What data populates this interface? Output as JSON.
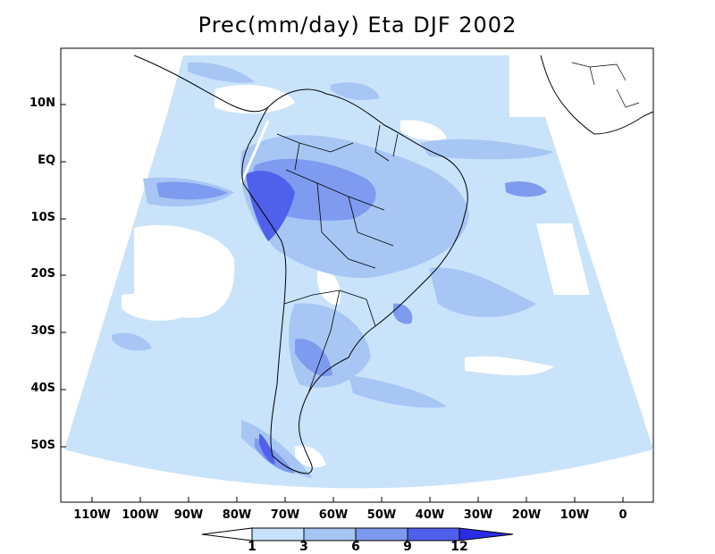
{
  "title": "Prec(mm/day) Eta DJF 2002",
  "lat_labels": [
    "10N",
    "EQ",
    "10S",
    "20S",
    "30S",
    "40S",
    "50S"
  ],
  "lon_labels": [
    "110W",
    "100W",
    "90W",
    "80W",
    "70W",
    "60W",
    "50W",
    "40W",
    "30W",
    "20W",
    "10W",
    "0"
  ],
  "colorbar": {
    "levels": [
      "1",
      "3",
      "6",
      "9",
      "12"
    ],
    "colors": [
      "#ffffff",
      "#c6e2fb",
      "#a6c4f2",
      "#7d99ee",
      "#4f5fec",
      "#2b2be3"
    ]
  },
  "colors": {
    "ocean_light": "#c9e3fb",
    "mid": "#a7c6f4",
    "heavy": "#7e9bef",
    "very_heavy": "#4f61ea",
    "land_dry": "#ffffff",
    "coast": "#000000"
  }
}
